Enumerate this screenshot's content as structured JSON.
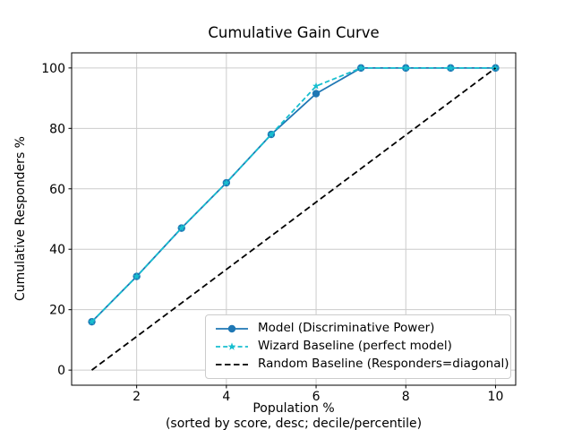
{
  "chart_data": {
    "type": "line",
    "title": "Cumulative Gain Curve",
    "xlabel": "Population %",
    "xlabel_note": "(sorted by score, desc; decile/percentile)",
    "ylabel": "Cumulative Responders %",
    "x": [
      1,
      2,
      3,
      4,
      5,
      6,
      7,
      8,
      9,
      10
    ],
    "series": [
      {
        "id": "model",
        "name": "Model (Discriminative Power)",
        "color": "#1f77b4",
        "line_style": "solid",
        "marker": "circle",
        "values": [
          16,
          31,
          47,
          62,
          78,
          91.5,
          100,
          100,
          100,
          100
        ]
      },
      {
        "id": "wizard",
        "name": "Wizard Baseline (perfect model)",
        "color": "#17becf",
        "line_style": "dashed",
        "marker": "star",
        "values": [
          16,
          31,
          47,
          62,
          78,
          94,
          100,
          100,
          100,
          100
        ]
      },
      {
        "id": "random",
        "name": "Random Baseline (Responders=diagonal)",
        "color": "#000000",
        "line_style": "dashed",
        "marker": "none",
        "values": [
          0,
          11.1,
          22.2,
          33.3,
          44.4,
          55.6,
          66.7,
          77.8,
          88.9,
          100
        ]
      }
    ],
    "xticks": [
      2,
      4,
      6,
      8,
      10
    ],
    "yticks": [
      0,
      20,
      40,
      60,
      80,
      100
    ],
    "xlim": [
      0.55,
      10.45
    ],
    "ylim": [
      -5,
      105
    ],
    "grid": true,
    "grid_color": "#cccccc",
    "legend_position": "lower right"
  }
}
